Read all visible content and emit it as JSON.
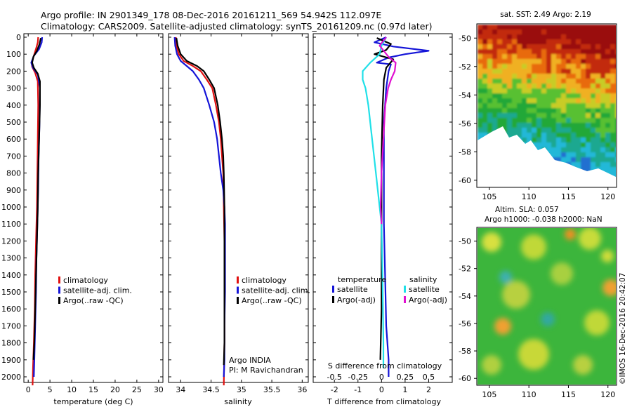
{
  "titles": {
    "line1": "Argo profile: IN 2901349_178 08-Dec-2016 20161211_569 54.942S 112.097E",
    "line2": "Climatology: CARS2009. Satellite-adjusted climatology: synTS_20161209.nc (0.97d later)"
  },
  "colors": {
    "red": "#e01010",
    "blue": "#1515d8",
    "black": "#000000",
    "cyan": "#20e0e8",
    "magenta": "#e010d0"
  },
  "chart_data": [
    {
      "type": "line",
      "id": "temperature",
      "xlabel": "temperature (deg C)",
      "xlim": [
        -1,
        31
      ],
      "xticks": [
        0,
        5,
        10,
        15,
        20,
        25,
        30
      ],
      "ylim": [
        2050,
        0
      ],
      "yticks": [
        0,
        100,
        200,
        300,
        400,
        500,
        600,
        700,
        800,
        900,
        1000,
        1100,
        1200,
        1300,
        1400,
        1500,
        1600,
        1700,
        1800,
        1900,
        2000
      ],
      "legend": [
        "climatology",
        "satellite-adj. clim.",
        "Argo(..raw -QC)"
      ],
      "series": [
        {
          "name": "climatology",
          "color": "red",
          "points": [
            [
              2.3,
              0
            ],
            [
              2.2,
              30
            ],
            [
              1.9,
              60
            ],
            [
              1.4,
              100
            ],
            [
              0.8,
              150
            ],
            [
              0.9,
              175
            ],
            [
              1.6,
              210
            ],
            [
              2.2,
              260
            ],
            [
              2.3,
              400
            ],
            [
              2.2,
              600
            ],
            [
              2.1,
              800
            ],
            [
              2.0,
              1000
            ],
            [
              1.8,
              1200
            ],
            [
              1.6,
              1400
            ],
            [
              1.5,
              1600
            ],
            [
              1.3,
              1800
            ],
            [
              1.1,
              1950
            ],
            [
              1.0,
              2050
            ]
          ]
        },
        {
          "name": "satellite-adj. clim.",
          "color": "blue",
          "points": [
            [
              3.2,
              0
            ],
            [
              3.1,
              30
            ],
            [
              2.5,
              70
            ],
            [
              1.3,
              110
            ],
            [
              0.7,
              150
            ],
            [
              1.1,
              180
            ],
            [
              2.2,
              220
            ],
            [
              2.7,
              300
            ],
            [
              2.6,
              500
            ],
            [
              2.4,
              700
            ],
            [
              2.3,
              900
            ],
            [
              2.1,
              1100
            ],
            [
              1.9,
              1300
            ],
            [
              1.8,
              1500
            ],
            [
              1.6,
              1700
            ],
            [
              1.4,
              1900
            ],
            [
              1.3,
              2000
            ]
          ]
        },
        {
          "name": "Argo(..raw -QC)",
          "color": "black",
          "points": [
            [
              2.9,
              5
            ],
            [
              2.6,
              40
            ],
            [
              2.0,
              80
            ],
            [
              1.2,
              115
            ],
            [
              0.9,
              150
            ],
            [
              1.3,
              180
            ],
            [
              2.2,
              215
            ],
            [
              2.7,
              260
            ],
            [
              2.7,
              400
            ],
            [
              2.5,
              600
            ],
            [
              2.3,
              800
            ],
            [
              2.2,
              1000
            ],
            [
              2.0,
              1200
            ],
            [
              1.8,
              1400
            ],
            [
              1.6,
              1600
            ],
            [
              1.4,
              1800
            ],
            [
              1.2,
              1900
            ]
          ]
        }
      ]
    },
    {
      "type": "line",
      "id": "salinity",
      "xlabel": "salinity",
      "xlim": [
        33.8,
        36.1
      ],
      "xticks": [
        34,
        34.5,
        35,
        35.5,
        36
      ],
      "ylim": [
        2050,
        0
      ],
      "legend": [
        "climatology",
        "satellite-adj. clim.",
        "Argo(..raw -QC)"
      ],
      "annotation": [
        "Argo INDIA",
        "PI: M Ravichandran"
      ],
      "series": [
        {
          "name": "climatology",
          "color": "red",
          "points": [
            [
              33.92,
              0
            ],
            [
              33.93,
              50
            ],
            [
              33.97,
              100
            ],
            [
              34.05,
              140
            ],
            [
              34.2,
              170
            ],
            [
              34.33,
              200
            ],
            [
              34.43,
              250
            ],
            [
              34.52,
              300
            ],
            [
              34.58,
              400
            ],
            [
              34.63,
              500
            ],
            [
              34.66,
              600
            ],
            [
              34.68,
              700
            ],
            [
              34.7,
              800
            ],
            [
              34.71,
              1000
            ],
            [
              34.72,
              1200
            ],
            [
              34.72,
              1400
            ],
            [
              34.72,
              1600
            ],
            [
              34.72,
              1800
            ],
            [
              34.71,
              2050
            ]
          ]
        },
        {
          "name": "satellite-adj. clim.",
          "color": "blue",
          "points": [
            [
              33.9,
              0
            ],
            [
              33.91,
              50
            ],
            [
              33.94,
              100
            ],
            [
              34.0,
              140
            ],
            [
              34.1,
              170
            ],
            [
              34.2,
              200
            ],
            [
              34.3,
              250
            ],
            [
              34.38,
              300
            ],
            [
              34.47,
              400
            ],
            [
              34.55,
              500
            ],
            [
              34.6,
              600
            ],
            [
              34.63,
              700
            ],
            [
              34.66,
              800
            ],
            [
              34.7,
              900
            ],
            [
              34.72,
              1000
            ],
            [
              34.73,
              1100
            ],
            [
              34.73,
              1300
            ],
            [
              34.73,
              1500
            ],
            [
              34.72,
              1700
            ],
            [
              34.72,
              1900
            ],
            [
              34.71,
              2000
            ]
          ]
        },
        {
          "name": "Argo(..raw -QC)",
          "color": "black",
          "points": [
            [
              33.93,
              5
            ],
            [
              33.95,
              50
            ],
            [
              34.0,
              100
            ],
            [
              34.1,
              140
            ],
            [
              34.27,
              170
            ],
            [
              34.38,
              200
            ],
            [
              34.47,
              250
            ],
            [
              34.55,
              300
            ],
            [
              34.61,
              400
            ],
            [
              34.65,
              500
            ],
            [
              34.68,
              600
            ],
            [
              34.7,
              700
            ],
            [
              34.71,
              800
            ],
            [
              34.72,
              1000
            ],
            [
              34.72,
              1200
            ],
            [
              34.72,
              1400
            ],
            [
              34.72,
              1600
            ],
            [
              34.72,
              1800
            ],
            [
              34.71,
              1930
            ]
          ]
        }
      ]
    },
    {
      "type": "line",
      "id": "difference",
      "xlabel": "T difference from climatology",
      "xlabel2": "S difference from climatology",
      "xlim": [
        -2.9,
        3.0
      ],
      "xticks": [
        -2,
        -1,
        0,
        1,
        2
      ],
      "xticks2": [
        -0.5,
        -0.25,
        0,
        0.25,
        0.5
      ],
      "ylim": [
        2050,
        0
      ],
      "legend_headers": [
        "temperature",
        "salinity"
      ],
      "legend": [
        "satellite",
        "Argo(-adj)",
        "satellite",
        "Argo(-adj)"
      ],
      "series": [
        {
          "name": "temperature satellite",
          "color": "blue",
          "points": [
            [
              0.2,
              0
            ],
            [
              -0.3,
              30
            ],
            [
              0.5,
              55
            ],
            [
              2.0,
              80
            ],
            [
              1.0,
              100
            ],
            [
              0.3,
              120
            ],
            [
              -0.2,
              150
            ],
            [
              0.4,
              160
            ],
            [
              0.3,
              200
            ],
            [
              0.2,
              300
            ],
            [
              0.1,
              500
            ],
            [
              0.1,
              800
            ],
            [
              0.1,
              1100
            ],
            [
              0.15,
              1400
            ],
            [
              0.2,
              1700
            ],
            [
              0.3,
              1900
            ],
            [
              0.3,
              2000
            ]
          ]
        },
        {
          "name": "temperature Argo(-adj)",
          "color": "black",
          "points": [
            [
              -0.2,
              5
            ],
            [
              0.4,
              40
            ],
            [
              0.2,
              75
            ],
            [
              -0.3,
              100
            ],
            [
              0.5,
              130
            ],
            [
              0.2,
              180
            ],
            [
              0.1,
              250
            ],
            [
              0.05,
              400
            ],
            [
              0.0,
              700
            ],
            [
              0.0,
              1000
            ],
            [
              0.0,
              1300
            ],
            [
              0.0,
              1600
            ],
            [
              -0.05,
              1900
            ]
          ]
        },
        {
          "name": "salinity satellite",
          "color": "cyan",
          "points": [
            [
              0.05,
              0
            ],
            [
              0.0,
              50
            ],
            [
              -0.02,
              100
            ],
            [
              -0.12,
              150
            ],
            [
              -0.2,
              200
            ],
            [
              -0.2,
              250
            ],
            [
              -0.17,
              300
            ],
            [
              -0.14,
              400
            ],
            [
              -0.1,
              600
            ],
            [
              -0.06,
              800
            ],
            [
              -0.02,
              1000
            ],
            [
              0.0,
              1100
            ],
            [
              0.01,
              1400
            ],
            [
              0.02,
              1800
            ],
            [
              0.02,
              1950
            ]
          ]
        },
        {
          "name": "salinity Argo(-adj)",
          "color": "magenta",
          "points": [
            [
              0.05,
              0
            ],
            [
              -0.02,
              50
            ],
            [
              0.08,
              120
            ],
            [
              0.15,
              150
            ],
            [
              0.14,
              200
            ],
            [
              0.1,
              250
            ],
            [
              0.07,
              300
            ],
            [
              0.04,
              400
            ],
            [
              0.02,
              600
            ],
            [
              0.0,
              800
            ],
            [
              -0.01,
              1000
            ],
            [
              0.0,
              1100
            ]
          ]
        }
      ]
    }
  ],
  "map_sst": {
    "title": "sat. SST: 2.49 Argo: 2.19",
    "xticks": [
      105,
      110,
      115,
      120
    ],
    "yticks": [
      -50,
      -52,
      -54,
      -56,
      -58,
      -60
    ],
    "xlim": [
      103.5,
      121.0
    ],
    "ylim": [
      -60.5,
      -49.0
    ]
  },
  "map_sla": {
    "title1": "Altim. SLA: 0.057",
    "title2": "Argo h1000: -0.038 h2000: NaN",
    "xticks": [
      105,
      110,
      115,
      120
    ],
    "yticks": [
      -50,
      -52,
      -54,
      -56,
      -58,
      -60
    ],
    "xlim": [
      103.5,
      121.0
    ],
    "ylim": [
      -60.5,
      -49.0
    ]
  },
  "credit": "©IMOS 16-Dec-2016 20:42:07"
}
